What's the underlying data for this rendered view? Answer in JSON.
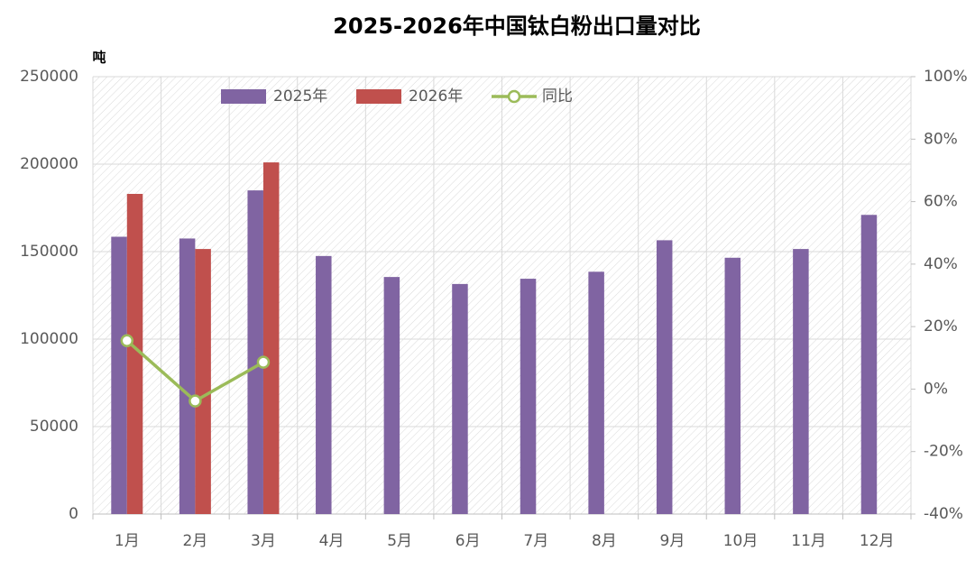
{
  "chart_data": {
    "type": "bar",
    "title": "2025-2026年中国钛白粉出口量对比",
    "y_label": "吨",
    "categories": [
      "1月",
      "2月",
      "3月",
      "4月",
      "5月",
      "6月",
      "7月",
      "8月",
      "9月",
      "10月",
      "11月",
      "12月"
    ],
    "series": [
      {
        "name": "2025年",
        "color": "#8064a2",
        "values": [
          158500,
          157500,
          185000,
          147500,
          135500,
          131500,
          134500,
          138500,
          156500,
          146500,
          151500,
          171000
        ]
      },
      {
        "name": "2026年",
        "color": "#c0504d",
        "values": [
          183000,
          151500,
          201000,
          null,
          null,
          null,
          null,
          null,
          null,
          null,
          null,
          null
        ]
      },
      {
        "name": "同比",
        "color": "#9bbb59",
        "type": "line",
        "axis": "y2",
        "values": [
          15.5,
          -3.8,
          8.6,
          null,
          null,
          null,
          null,
          null,
          null,
          null,
          null,
          null
        ]
      }
    ],
    "ylim": [
      0,
      250000
    ],
    "yticks": [
      0,
      50000,
      100000,
      150000,
      200000,
      250000
    ],
    "y2lim": [
      -40,
      100
    ],
    "y2ticks": [
      {
        "value": -40,
        "label": "-40%"
      },
      {
        "value": -20,
        "label": "-20%"
      },
      {
        "value": 0,
        "label": "0%"
      },
      {
        "value": 20,
        "label": "20%"
      },
      {
        "value": 40,
        "label": "40%"
      },
      {
        "value": 60,
        "label": "60%"
      },
      {
        "value": 80,
        "label": "80%"
      },
      {
        "value": 100,
        "label": "100%"
      }
    ],
    "grid": true,
    "legend": "top"
  }
}
